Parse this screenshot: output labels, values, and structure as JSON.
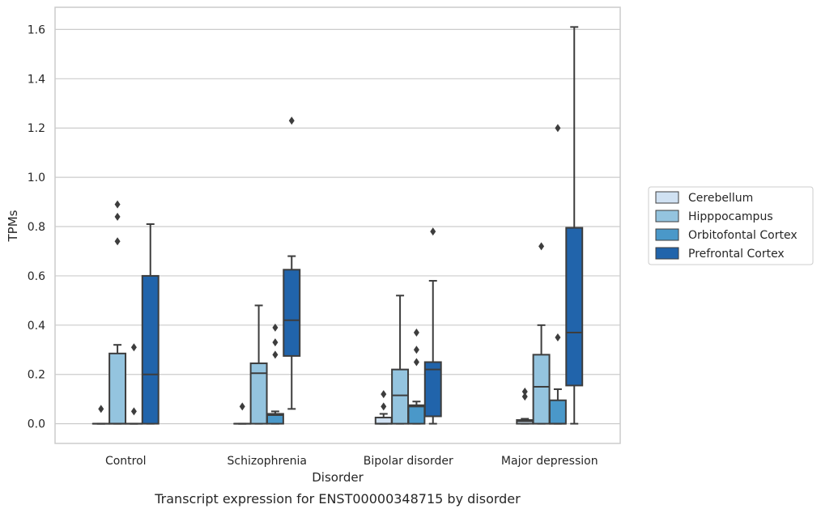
{
  "caption": "Transcript expression for ENST00000348715 by disorder",
  "chart_data": {
    "type": "box",
    "xlabel": "Disorder",
    "ylabel": "TPMs",
    "categories": [
      "Control",
      "Schizophrenia",
      "Bipolar disorder",
      "Major depression"
    ],
    "ylim": [
      -0.08,
      1.69
    ],
    "yticks": [
      "0.0",
      "0.2",
      "0.4",
      "0.6",
      "0.8",
      "1.0",
      "1.2",
      "1.4",
      "1.6"
    ],
    "grid": true,
    "legend_position": "right",
    "series": [
      {
        "name": "Cerebellum",
        "color": "#d0e1f2",
        "boxes": [
          {
            "min": 0,
            "q1": 0,
            "median": 0,
            "q3": 0,
            "max": 0,
            "outliers": [
              0.06
            ]
          },
          {
            "min": 0,
            "q1": 0,
            "median": 0,
            "q3": 0,
            "max": 0,
            "outliers": [
              0.07
            ]
          },
          {
            "min": 0,
            "q1": 0,
            "median": 0,
            "q3": 0.025,
            "max": 0.04,
            "outliers": [
              0.07,
              0.12
            ]
          },
          {
            "min": 0,
            "q1": 0,
            "median": 0.01,
            "q3": 0.015,
            "max": 0.02,
            "outliers": [
              0.11,
              0.13
            ]
          }
        ]
      },
      {
        "name": "Hipppocampus",
        "color": "#94c4df",
        "boxes": [
          {
            "min": 0,
            "q1": 0,
            "median": 0,
            "q3": 0.285,
            "max": 0.32,
            "outliers": [
              0.74,
              0.84,
              0.89
            ]
          },
          {
            "min": 0,
            "q1": 0,
            "median": 0.205,
            "q3": 0.245,
            "max": 0.48,
            "outliers": []
          },
          {
            "min": 0,
            "q1": 0,
            "median": 0.115,
            "q3": 0.22,
            "max": 0.52,
            "outliers": []
          },
          {
            "min": 0,
            "q1": 0,
            "median": 0.15,
            "q3": 0.28,
            "max": 0.4,
            "outliers": [
              0.72
            ]
          }
        ]
      },
      {
        "name": "Orbitofontal Cortex",
        "color": "#4a98c9",
        "boxes": [
          {
            "min": 0,
            "q1": 0,
            "median": 0,
            "q3": 0,
            "max": 0,
            "outliers": [
              0.05,
              0.31
            ]
          },
          {
            "min": 0,
            "q1": 0,
            "median": 0.035,
            "q3": 0.04,
            "max": 0.05,
            "outliers": [
              0.28,
              0.33,
              0.39
            ]
          },
          {
            "min": 0,
            "q1": 0,
            "median": 0.07,
            "q3": 0.075,
            "max": 0.09,
            "outliers": [
              0.25,
              0.3,
              0.37
            ]
          },
          {
            "min": 0,
            "q1": 0,
            "median": 0,
            "q3": 0.095,
            "max": 0.14,
            "outliers": [
              0.35,
              1.2
            ]
          }
        ]
      },
      {
        "name": "Prefrontal Cortex",
        "color": "#2164ab",
        "boxes": [
          {
            "min": 0,
            "q1": 0,
            "median": 0.2,
            "q3": 0.6,
            "max": 0.81,
            "outliers": []
          },
          {
            "min": 0.06,
            "q1": 0.275,
            "median": 0.42,
            "q3": 0.625,
            "max": 0.68,
            "outliers": [
              1.23
            ]
          },
          {
            "min": 0,
            "q1": 0.03,
            "median": 0.22,
            "q3": 0.25,
            "max": 0.58,
            "outliers": [
              0.78
            ]
          },
          {
            "min": 0,
            "q1": 0.155,
            "median": 0.37,
            "q3": 0.795,
            "max": 1.61,
            "outliers": []
          }
        ]
      }
    ]
  }
}
